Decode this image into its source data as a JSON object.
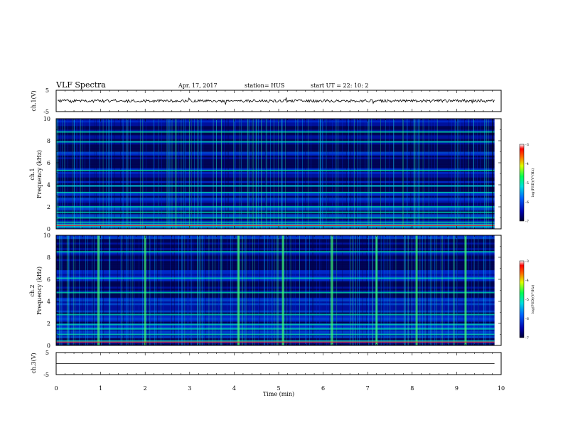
{
  "header": {
    "title": "VLF Spectra",
    "date": "Apr. 17, 2017",
    "station": "station= HUS",
    "start_ut": "start  UT =   22: 10: 2"
  },
  "chart_data": [
    {
      "type": "line",
      "panel": "ch1-waveform",
      "ylabel": "ch.1(V)",
      "y_ticks": [
        "5",
        "-5"
      ],
      "ylim": [
        -5,
        5
      ],
      "x": [
        0,
        9.85
      ],
      "description_level": 0,
      "trace_color": "#000000"
    },
    {
      "type": "heatmap",
      "panel": "ch1-spectrogram",
      "ylabel_top": "ch.1",
      "ylabel": "Frequency (kHz)",
      "y_ticks": [
        "10",
        "8",
        "6",
        "4",
        "2",
        "0"
      ],
      "ylim": [
        0,
        10
      ],
      "xlim": [
        0,
        9.85
      ],
      "colorbar": {
        "label": "log(PSD)(V²/Hz)",
        "ticks": [
          "-3",
          "-4",
          "-5",
          "-6",
          "-7"
        ],
        "range": [
          -7,
          -3
        ]
      },
      "bright_bands_khz": [
        0.2,
        0.4,
        0.6,
        1.0,
        1.5,
        2.0,
        3.3,
        3.9,
        5.3,
        7.9,
        8.8
      ]
    },
    {
      "type": "heatmap",
      "panel": "ch2-spectrogram",
      "ylabel_top": "ch.2",
      "ylabel": "Frequency (kHz)",
      "y_ticks": [
        "10",
        "8",
        "6",
        "4",
        "2",
        "0"
      ],
      "ylim": [
        0,
        10
      ],
      "xlim": [
        0,
        9.85
      ],
      "colorbar": {
        "label": "log(PSD)(V²/Hz)",
        "ticks": [
          "-3",
          "-4",
          "-5",
          "-6",
          "-7"
        ],
        "range": [
          -7,
          -3
        ]
      },
      "bright_bands_khz": [
        0.4,
        1.0,
        1.5,
        1.9,
        2.8,
        4.8,
        6.1,
        8.5
      ],
      "bright_bursts_min": [
        0.95,
        2.0,
        4.1,
        5.1,
        6.2,
        7.2,
        8.1,
        9.2
      ]
    },
    {
      "type": "line",
      "panel": "ch3-waveform",
      "ylabel": "ch.3(V)",
      "y_ticks": [
        "5",
        "0",
        "-5"
      ],
      "ylim": [
        -5,
        5
      ],
      "x": [
        0,
        9.85
      ],
      "y": [
        0,
        0
      ],
      "trace_color": "#000000"
    }
  ],
  "x_axis": {
    "label": "Time  (min)",
    "ticks": [
      "0",
      "1",
      "2",
      "3",
      "4",
      "5",
      "6",
      "7",
      "8",
      "9",
      "10"
    ],
    "range": [
      0,
      10
    ]
  },
  "colors": {
    "background_low": "#00008b",
    "mid": "#0040ff",
    "high": "#00ff90",
    "peak": "#ff0000"
  }
}
